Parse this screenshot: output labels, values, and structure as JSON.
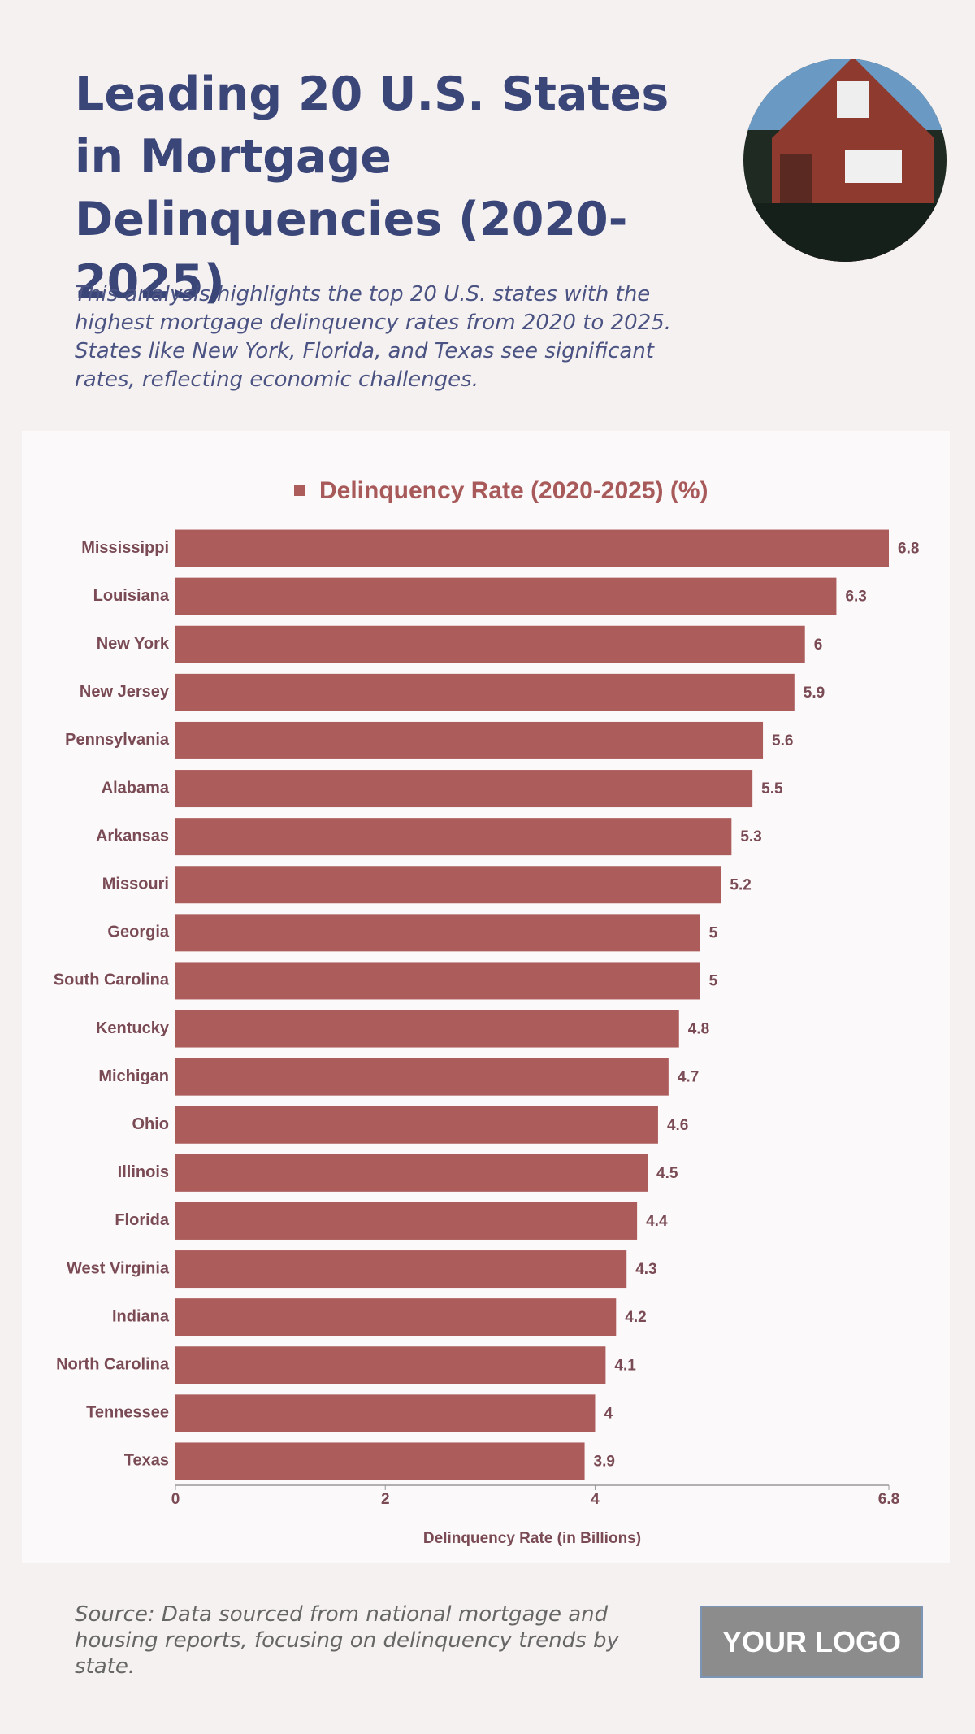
{
  "title": "Leading 20 U.S. States in Mortgage Delinquencies (2020-2025)",
  "subtitle": "This analysis highlights the top 20 U.S. states with the highest mortgage delinquency rates from 2020 to 2025. States like New York, Florida, and Texas see significant rates, reflecting economic challenges.",
  "source": "Source: Data sourced from national mortgage and housing reports, focusing on delinquency trends by state.",
  "logo": "YOUR LOGO",
  "chart_data": {
    "type": "bar",
    "orientation": "horizontal",
    "categories": [
      "Mississippi",
      "Louisiana",
      "New York",
      "New Jersey",
      "Pennsylvania",
      "Alabama",
      "Arkansas",
      "Missouri",
      "Georgia",
      "South Carolina",
      "Kentucky",
      "Michigan",
      "Ohio",
      "Illinois",
      "Florida",
      "West Virginia",
      "Indiana",
      "North Carolina",
      "Tennessee",
      "Texas"
    ],
    "series": [
      {
        "name": "Delinquency Rate (2020-2025) (%)",
        "color": "#ad5c5c",
        "values": [
          6.8,
          6.3,
          6,
          5.9,
          5.6,
          5.5,
          5.3,
          5.2,
          5,
          5,
          4.8,
          4.7,
          4.6,
          4.5,
          4.4,
          4.3,
          4.2,
          4.1,
          4,
          3.9
        ]
      }
    ],
    "xlabel": "Delinquency Rate (in Billions)",
    "xlim": [
      0,
      6.8
    ],
    "xticks": [
      0,
      2,
      4,
      6.8
    ],
    "grid": false,
    "legend": "top"
  }
}
